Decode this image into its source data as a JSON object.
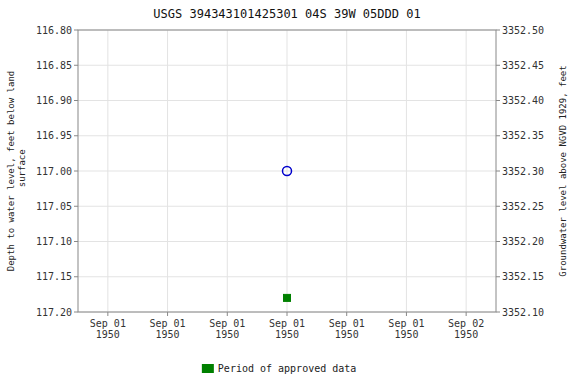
{
  "chart_data": {
    "type": "scatter",
    "title": "USGS 394343101425301 04S 39W 05DDD 01",
    "y_label": "Depth to water level, feet below land\n surface",
    "y2_label": "Groundwater level above NGVD 1929, feet",
    "categories": [
      "Sep 01\n1950",
      "Sep 01\n1950",
      "Sep 01\n1950",
      "Sep 01\n1950",
      "Sep 01\n1950",
      "Sep 01\n1950",
      "Sep 02\n1950"
    ],
    "series": [
      {
        "color": "#0000cc",
        "marker": "open-circle",
        "values": [
          null,
          null,
          null,
          117.0,
          null,
          null,
          null
        ]
      },
      {
        "name": "Period of approved data",
        "color": "#008000",
        "marker": "square",
        "values": [
          null,
          null,
          null,
          117.18,
          null,
          null,
          null
        ]
      }
    ],
    "ylim": [
      117.2,
      116.8
    ],
    "yticks": [
      {
        "value": 116.8,
        "label": "116.80"
      },
      {
        "value": 116.85,
        "label": "116.85"
      },
      {
        "value": 116.9,
        "label": "116.90"
      },
      {
        "value": 116.95,
        "label": "116.95"
      },
      {
        "value": 117.0,
        "label": "117.00"
      },
      {
        "value": 117.05,
        "label": "117.05"
      },
      {
        "value": 117.1,
        "label": "117.10"
      },
      {
        "value": 117.15,
        "label": "117.15"
      },
      {
        "value": 117.2,
        "label": "117.20"
      }
    ],
    "y2lim": [
      3352.1,
      3352.5
    ],
    "y2ticks": [
      {
        "value": 3352.5,
        "label": "3352.50"
      },
      {
        "value": 3352.45,
        "label": "3352.45"
      },
      {
        "value": 3352.4,
        "label": "3352.40"
      },
      {
        "value": 3352.35,
        "label": "3352.35"
      },
      {
        "value": 3352.3,
        "label": "3352.30"
      },
      {
        "value": 3352.25,
        "label": "3352.25"
      },
      {
        "value": 3352.2,
        "label": "3352.20"
      },
      {
        "value": 3352.15,
        "label": "3352.15"
      },
      {
        "value": 3352.1,
        "label": "3352.10"
      }
    ],
    "grid": true,
    "legend": "bottom"
  }
}
